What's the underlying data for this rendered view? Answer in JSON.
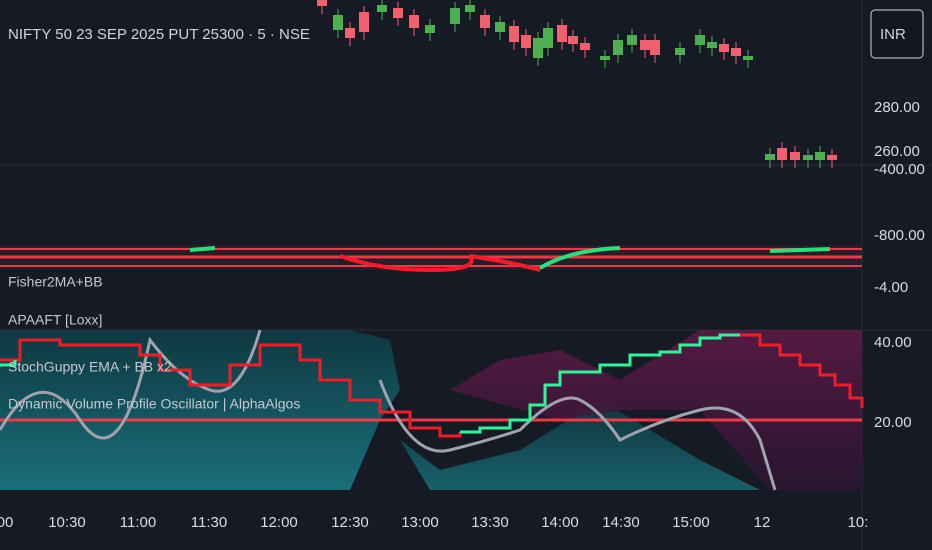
{
  "header": {
    "title": "NIFTY 50 23 SEP 2025 PUT 25300 · 5 · NSE",
    "currency": "INR"
  },
  "price_axis": [
    "280.00",
    "260.00",
    "-400.00",
    "-800.00",
    "-4.00",
    "40.00",
    "20.00"
  ],
  "indicators": [
    "Fisher2MA+BB",
    "APAAFT [Loxx]",
    "StochGuppy EMA + BB x2",
    "Dynamic Volume Profile Oscillator | AlphaAlgos"
  ],
  "time_axis": [
    "00",
    "10:30",
    "11:00",
    "11:30",
    "12:00",
    "12:30",
    "13:00",
    "13:30",
    "14:00",
    "14:30",
    "15:00",
    "12",
    "10:"
  ]
}
